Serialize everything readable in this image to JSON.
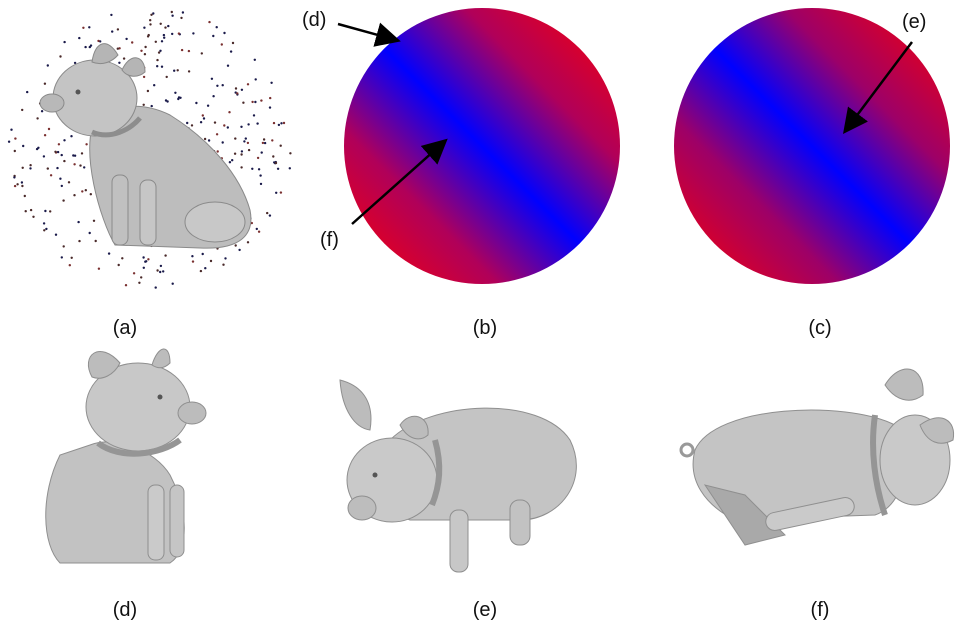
{
  "figure": {
    "panels": [
      {
        "id": "a",
        "caption": "(a)",
        "content": "pig-model-with-sample-points"
      },
      {
        "id": "b",
        "caption": "(b)",
        "content": "view-sphere-heatmap"
      },
      {
        "id": "c",
        "caption": "(c)",
        "content": "view-sphere-heatmap"
      },
      {
        "id": "d",
        "caption": "(d)",
        "content": "pig-render-view"
      },
      {
        "id": "e",
        "caption": "(e)",
        "content": "pig-render-view"
      },
      {
        "id": "f",
        "caption": "(f)",
        "content": "pig-render-view"
      }
    ],
    "callouts": {
      "d": "(d)",
      "e": "(e)",
      "f": "(f)"
    },
    "colors": {
      "high": "#ff0000",
      "low": "#0000ff",
      "model": "#b3b3b3",
      "arrow": "#000000"
    }
  }
}
